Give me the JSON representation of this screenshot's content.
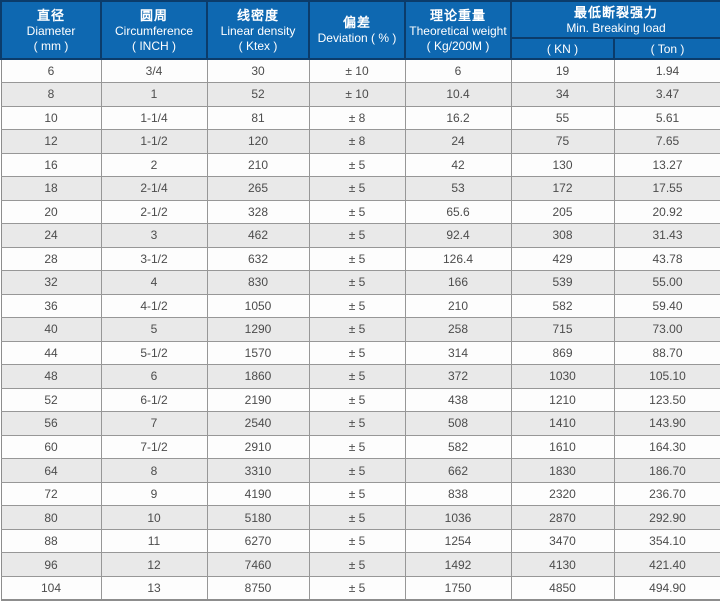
{
  "table": {
    "header": {
      "cols": [
        {
          "zh": "直径",
          "en": "Diameter",
          "unit": "( mm )"
        },
        {
          "zh": "圆周",
          "en": "Circumference",
          "unit": "( INCH )"
        },
        {
          "zh": "线密度",
          "en": "Linear density",
          "unit": "( Ktex )"
        },
        {
          "zh": "偏差",
          "en": "Deviation ( % )",
          "unit": ""
        },
        {
          "zh": "理论重量",
          "en": "Theoretical weight",
          "unit": "( Kg/200M )"
        }
      ],
      "group": {
        "zh": "最低断裂强力",
        "en": "Min. Breaking load",
        "sub": [
          "( KN )",
          "( Ton )"
        ]
      }
    },
    "rows": [
      [
        "6",
        "3/4",
        "30",
        "± 10",
        "6",
        "19",
        "1.94"
      ],
      [
        "8",
        "1",
        "52",
        "± 10",
        "10.4",
        "34",
        "3.47"
      ],
      [
        "10",
        "1-1/4",
        "81",
        "± 8",
        "16.2",
        "55",
        "5.61"
      ],
      [
        "12",
        "1-1/2",
        "120",
        "± 8",
        "24",
        "75",
        "7.65"
      ],
      [
        "16",
        "2",
        "210",
        "± 5",
        "42",
        "130",
        "13.27"
      ],
      [
        "18",
        "2-1/4",
        "265",
        "± 5",
        "53",
        "172",
        "17.55"
      ],
      [
        "20",
        "2-1/2",
        "328",
        "± 5",
        "65.6",
        "205",
        "20.92"
      ],
      [
        "24",
        "3",
        "462",
        "± 5",
        "92.4",
        "308",
        "31.43"
      ],
      [
        "28",
        "3-1/2",
        "632",
        "± 5",
        "126.4",
        "429",
        "43.78"
      ],
      [
        "32",
        "4",
        "830",
        "± 5",
        "166",
        "539",
        "55.00"
      ],
      [
        "36",
        "4-1/2",
        "1050",
        "± 5",
        "210",
        "582",
        "59.40"
      ],
      [
        "40",
        "5",
        "1290",
        "± 5",
        "258",
        "715",
        "73.00"
      ],
      [
        "44",
        "5-1/2",
        "1570",
        "± 5",
        "314",
        "869",
        "88.70"
      ],
      [
        "48",
        "6",
        "1860",
        "± 5",
        "372",
        "1030",
        "105.10"
      ],
      [
        "52",
        "6-1/2",
        "2190",
        "± 5",
        "438",
        "1210",
        "123.50"
      ],
      [
        "56",
        "7",
        "2540",
        "± 5",
        "508",
        "1410",
        "143.90"
      ],
      [
        "60",
        "7-1/2",
        "2910",
        "± 5",
        "582",
        "1610",
        "164.30"
      ],
      [
        "64",
        "8",
        "3310",
        "± 5",
        "662",
        "1830",
        "186.70"
      ],
      [
        "72",
        "9",
        "4190",
        "± 5",
        "838",
        "2320",
        "236.70"
      ],
      [
        "80",
        "10",
        "5180",
        "± 5",
        "1036",
        "2870",
        "292.90"
      ],
      [
        "88",
        "11",
        "6270",
        "± 5",
        "1254",
        "3470",
        "354.10"
      ],
      [
        "96",
        "12",
        "7460",
        "± 5",
        "1492",
        "4130",
        "421.40"
      ],
      [
        "104",
        "13",
        "8750",
        "± 5",
        "1750",
        "4850",
        "494.90"
      ]
    ],
    "colors": {
      "header_bg": "#0e68b1",
      "header_border": "#0b3c6b",
      "header_text": "#ffffff",
      "row_alt": "#e9e9e9",
      "grid": "#979797",
      "body_text": "#4c4c4c"
    }
  }
}
